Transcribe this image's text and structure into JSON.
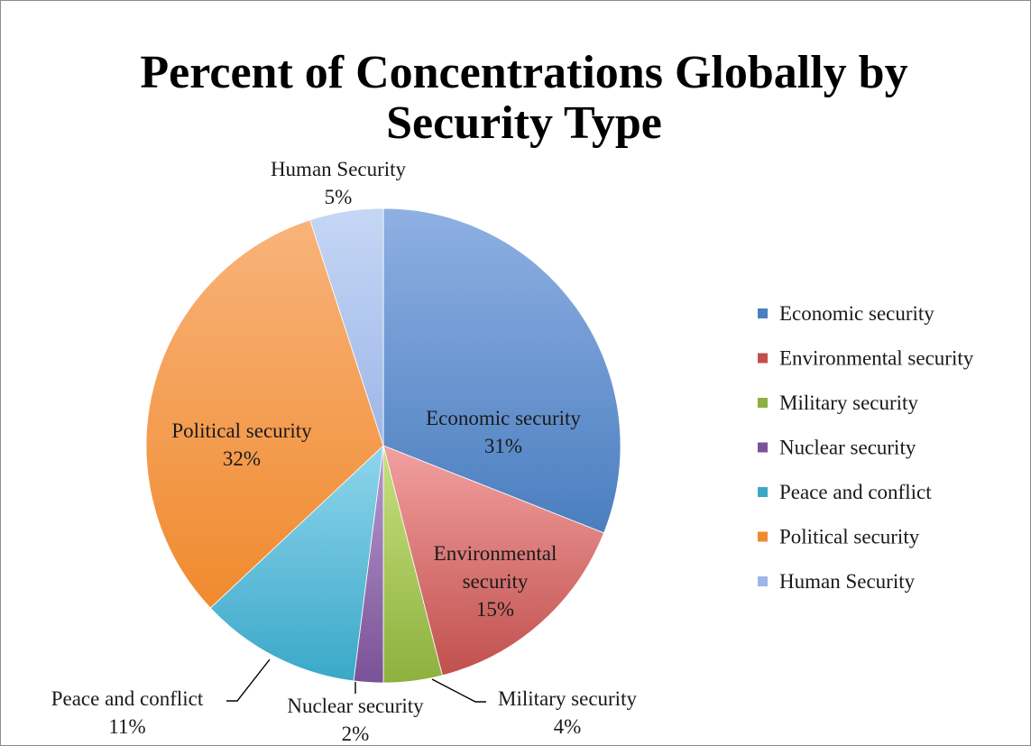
{
  "chart_data": {
    "type": "pie",
    "title_line1": "Percent of Concentrations Globally by",
    "title_line2": "Security Type",
    "start_angle_deg": 0,
    "direction": "clockwise",
    "legend_position": "right",
    "slices": [
      {
        "name": "Economic security",
        "value": 31,
        "label": "31%",
        "color": "#4a7ebf",
        "highlight": "#8fb0e3"
      },
      {
        "name": "Environmental security",
        "value": 15,
        "label": "15%",
        "color": "#c0504d",
        "highlight": "#f2a0a0"
      },
      {
        "name": "Military security",
        "value": 4,
        "label": "4%",
        "color": "#8db03e",
        "highlight": "#c6e27f"
      },
      {
        "name": "Nuclear security",
        "value": 2,
        "label": "2%",
        "color": "#7a5297",
        "highlight": "#b79ad0"
      },
      {
        "name": "Peace and conflict",
        "value": 11,
        "label": "11%",
        "color": "#3aa8c8",
        "highlight": "#8fd5ec"
      },
      {
        "name": "Political security",
        "value": 32,
        "label": "32%",
        "color": "#f08a2e",
        "highlight": "#f8b37a"
      },
      {
        "name": "Human Security",
        "value": 5,
        "label": "5%",
        "color": "#9db6e8",
        "highlight": "#c5d7f5"
      }
    ],
    "legend": [
      "Economic security",
      "Environmental security",
      "Military security",
      "Nuclear security",
      "Peace and conflict",
      "Political security",
      "Human Security"
    ],
    "data_labels": [
      {
        "lines": [
          "Economic security",
          "31%"
        ]
      },
      {
        "lines": [
          "Environmental",
          "security",
          "15%"
        ]
      },
      {
        "lines": [
          "Military security",
          "4%"
        ]
      },
      {
        "lines": [
          "Nuclear security",
          "2%"
        ]
      },
      {
        "lines": [
          "Peace and conflict",
          "11%"
        ]
      },
      {
        "lines": [
          "Political security",
          "32%"
        ]
      },
      {
        "lines": [
          "Human Security",
          "5%"
        ]
      }
    ]
  }
}
